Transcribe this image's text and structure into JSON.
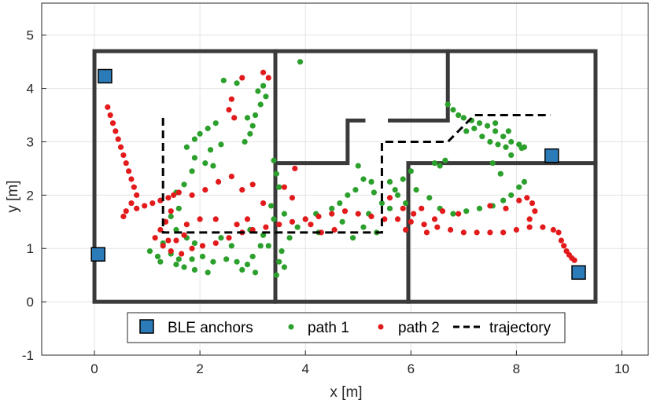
{
  "chart_data": {
    "type": "scatter",
    "title": "",
    "xlabel": "x [m]",
    "ylabel": "y [m]",
    "xlim": [
      -1,
      10.5
    ],
    "ylim": [
      -1,
      5.6
    ],
    "xticks": [
      0,
      2,
      4,
      6,
      8,
      10
    ],
    "yticks": [
      -1,
      0,
      1,
      2,
      3,
      4,
      5
    ],
    "grid": true,
    "legend_position": "bottom-center",
    "colors": {
      "walls": "#3a3a3a",
      "anchor_fill": "#2b7bb9",
      "path1": "#2ca02c",
      "path2": "#e31a1c",
      "trajectory": "#000000",
      "grid": "#e3e3e3"
    },
    "walls": [
      [
        [
          0,
          0
        ],
        [
          9.5,
          0
        ],
        [
          9.5,
          4.7
        ],
        [
          0,
          4.7
        ],
        [
          0,
          0
        ]
      ],
      [
        [
          3.43,
          0
        ],
        [
          3.43,
          4.7
        ]
      ],
      [
        [
          3.43,
          2.6
        ],
        [
          4.8,
          2.6
        ],
        [
          4.8,
          3.4
        ],
        [
          5.1,
          3.4
        ]
      ],
      [
        [
          5.6,
          3.4
        ],
        [
          6.7,
          3.4
        ],
        [
          6.7,
          4.7
        ]
      ],
      [
        [
          5.95,
          0
        ],
        [
          5.95,
          2.6
        ],
        [
          9.5,
          2.6
        ]
      ]
    ],
    "series": [
      {
        "name": "BLE anchors",
        "marker": "square",
        "points": [
          [
            0.2,
            4.23
          ],
          [
            0.07,
            0.89
          ],
          [
            8.67,
            2.74
          ],
          [
            9.18,
            0.55
          ]
        ]
      },
      {
        "name": "path 1",
        "marker": "dot",
        "points": [
          [
            3.9,
            4.5
          ],
          [
            2.45,
            4.15
          ],
          [
            2.7,
            4.1
          ],
          [
            3.2,
            4.05
          ],
          [
            3.1,
            3.95
          ],
          [
            3.25,
            3.85
          ],
          [
            3.15,
            3.7
          ],
          [
            3.05,
            3.5
          ],
          [
            2.9,
            3.45
          ],
          [
            3.0,
            3.3
          ],
          [
            2.95,
            3.15
          ],
          [
            2.85,
            3.0
          ],
          [
            2.3,
            3.35
          ],
          [
            2.15,
            3.25
          ],
          [
            2.0,
            3.15
          ],
          [
            1.9,
            3.05
          ],
          [
            2.4,
            2.95
          ],
          [
            2.2,
            2.85
          ],
          [
            1.75,
            2.9
          ],
          [
            1.9,
            2.7
          ],
          [
            2.1,
            2.6
          ],
          [
            2.25,
            2.55
          ],
          [
            1.85,
            2.45
          ],
          [
            1.7,
            2.2
          ],
          [
            1.55,
            2.05
          ],
          [
            1.6,
            1.75
          ],
          [
            1.45,
            1.6
          ],
          [
            1.35,
            1.5
          ],
          [
            1.55,
            1.35
          ],
          [
            1.75,
            1.2
          ],
          [
            1.9,
            1.1
          ],
          [
            1.3,
            1.1
          ],
          [
            1.05,
            0.95
          ],
          [
            1.2,
            0.85
          ],
          [
            1.45,
            0.9
          ],
          [
            1.6,
            0.8
          ],
          [
            1.85,
            0.8
          ],
          [
            2.05,
            0.85
          ],
          [
            2.25,
            0.75
          ],
          [
            2.5,
            0.8
          ],
          [
            2.7,
            0.75
          ],
          [
            2.9,
            0.7
          ],
          [
            3.0,
            0.85
          ],
          [
            3.15,
            1.05
          ],
          [
            3.2,
            1.25
          ],
          [
            2.95,
            1.35
          ],
          [
            2.6,
            1.05
          ],
          [
            2.4,
            1.2
          ],
          [
            2.8,
            0.6
          ],
          [
            3.05,
            0.55
          ],
          [
            2.15,
            0.55
          ],
          [
            1.9,
            0.6
          ],
          [
            1.7,
            0.65
          ],
          [
            1.55,
            0.7
          ],
          [
            1.25,
            0.75
          ],
          [
            3.45,
            0.5
          ],
          [
            3.5,
            0.75
          ],
          [
            3.55,
            0.95
          ],
          [
            3.7,
            1.2
          ],
          [
            3.85,
            1.4
          ],
          [
            3.4,
            1.55
          ],
          [
            3.35,
            1.8
          ],
          [
            3.5,
            2.15
          ],
          [
            3.45,
            2.4
          ],
          [
            3.4,
            2.65
          ],
          [
            3.6,
            1.65
          ],
          [
            3.3,
            1.05
          ],
          [
            3.6,
            0.65
          ],
          [
            4.0,
            1.55
          ],
          [
            4.2,
            1.65
          ],
          [
            4.5,
            1.75
          ],
          [
            4.65,
            1.85
          ],
          [
            4.8,
            2.0
          ],
          [
            4.95,
            2.1
          ],
          [
            5.1,
            2.3
          ],
          [
            5.0,
            2.55
          ],
          [
            5.25,
            2.25
          ],
          [
            5.3,
            2.05
          ],
          [
            5.45,
            1.85
          ],
          [
            5.6,
            1.75
          ],
          [
            5.7,
            2.1
          ],
          [
            5.85,
            2.3
          ],
          [
            6.0,
            2.45
          ],
          [
            5.9,
            1.85
          ],
          [
            5.2,
            1.65
          ],
          [
            5.1,
            1.4
          ],
          [
            5.35,
            1.3
          ],
          [
            4.9,
            1.2
          ],
          [
            4.7,
            1.5
          ],
          [
            4.25,
            1.3
          ],
          [
            5.6,
            2.25
          ],
          [
            5.75,
            2.0
          ],
          [
            6.1,
            2.1
          ],
          [
            6.35,
            1.95
          ],
          [
            6.55,
            1.75
          ],
          [
            6.8,
            1.65
          ],
          [
            7.05,
            1.7
          ],
          [
            7.3,
            1.75
          ],
          [
            7.55,
            1.8
          ],
          [
            7.75,
            1.9
          ],
          [
            7.9,
            2.0
          ],
          [
            8.05,
            2.15
          ],
          [
            8.15,
            2.25
          ],
          [
            7.7,
            2.4
          ],
          [
            7.55,
            2.6
          ],
          [
            6.65,
            2.65
          ],
          [
            6.55,
            2.55
          ],
          [
            6.45,
            2.6
          ],
          [
            6.7,
            3.7
          ],
          [
            6.8,
            3.6
          ],
          [
            6.9,
            3.5
          ],
          [
            7.0,
            3.45
          ],
          [
            7.15,
            3.4
          ],
          [
            7.3,
            3.35
          ],
          [
            7.45,
            3.3
          ],
          [
            7.6,
            3.2
          ],
          [
            7.75,
            3.1
          ],
          [
            7.9,
            3.0
          ],
          [
            8.05,
            2.95
          ],
          [
            8.15,
            2.9
          ],
          [
            7.35,
            3.1
          ],
          [
            7.5,
            3.0
          ],
          [
            7.65,
            2.95
          ],
          [
            7.8,
            2.9
          ],
          [
            7.2,
            3.25
          ],
          [
            7.05,
            3.2
          ],
          [
            7.6,
            3.35
          ],
          [
            7.85,
            3.2
          ],
          [
            8.1,
            2.88
          ],
          [
            7.9,
            2.75
          ]
        ]
      },
      {
        "name": "path 2",
        "marker": "dot",
        "points": [
          [
            0.25,
            3.65
          ],
          [
            0.3,
            3.5
          ],
          [
            0.35,
            3.35
          ],
          [
            0.4,
            3.2
          ],
          [
            0.45,
            3.05
          ],
          [
            0.5,
            2.9
          ],
          [
            0.55,
            2.75
          ],
          [
            0.6,
            2.6
          ],
          [
            0.65,
            2.45
          ],
          [
            0.7,
            2.3
          ],
          [
            0.75,
            2.15
          ],
          [
            0.8,
            2.0
          ],
          [
            0.7,
            1.85
          ],
          [
            0.6,
            1.7
          ],
          [
            0.55,
            1.6
          ],
          [
            0.8,
            1.75
          ],
          [
            0.95,
            1.8
          ],
          [
            1.1,
            1.85
          ],
          [
            1.25,
            1.9
          ],
          [
            1.4,
            1.95
          ],
          [
            1.5,
            2.0
          ],
          [
            1.6,
            2.05
          ],
          [
            1.45,
            1.7
          ],
          [
            1.35,
            1.5
          ],
          [
            1.25,
            1.35
          ],
          [
            1.15,
            1.2
          ],
          [
            1.3,
            1.05
          ],
          [
            1.45,
            0.95
          ],
          [
            1.65,
            0.9
          ],
          [
            1.85,
            1.0
          ],
          [
            2.05,
            1.05
          ],
          [
            2.3,
            1.1
          ],
          [
            2.55,
            1.2
          ],
          [
            2.8,
            1.3
          ],
          [
            3.0,
            1.35
          ],
          [
            3.25,
            1.4
          ],
          [
            3.5,
            1.45
          ],
          [
            3.75,
            1.5
          ],
          [
            4.0,
            1.55
          ],
          [
            4.25,
            1.6
          ],
          [
            4.5,
            1.65
          ],
          [
            4.75,
            1.7
          ],
          [
            5.0,
            1.65
          ],
          [
            5.25,
            1.6
          ],
          [
            5.5,
            1.55
          ],
          [
            5.75,
            1.55
          ],
          [
            6.0,
            1.5
          ],
          [
            6.25,
            1.45
          ],
          [
            6.5,
            1.4
          ],
          [
            6.75,
            1.35
          ],
          [
            7.0,
            1.3
          ],
          [
            7.25,
            1.3
          ],
          [
            7.5,
            1.3
          ],
          [
            7.75,
            1.3
          ],
          [
            8.0,
            1.35
          ],
          [
            8.25,
            1.4
          ],
          [
            8.5,
            1.4
          ],
          [
            8.7,
            1.35
          ],
          [
            8.8,
            1.3
          ],
          [
            8.85,
            1.15
          ],
          [
            8.9,
            1.05
          ],
          [
            8.95,
            0.95
          ],
          [
            9.0,
            0.88
          ],
          [
            9.05,
            0.82
          ],
          [
            9.1,
            0.78
          ],
          [
            8.05,
            1.9
          ],
          [
            8.2,
            1.95
          ],
          [
            8.3,
            1.85
          ],
          [
            8.35,
            1.7
          ],
          [
            8.25,
            1.55
          ],
          [
            7.8,
            1.75
          ],
          [
            7.5,
            1.8
          ],
          [
            6.9,
            1.65
          ],
          [
            6.6,
            1.7
          ],
          [
            6.2,
            1.75
          ],
          [
            5.85,
            1.75
          ],
          [
            6.05,
            1.65
          ],
          [
            5.6,
            1.95
          ],
          [
            2.8,
            4.2
          ],
          [
            3.2,
            4.3
          ],
          [
            3.3,
            4.2
          ],
          [
            2.6,
            3.8
          ],
          [
            2.55,
            3.6
          ],
          [
            2.65,
            3.45
          ],
          [
            2.6,
            2.35
          ],
          [
            2.35,
            2.25
          ],
          [
            2.1,
            2.1
          ],
          [
            1.85,
            2.0
          ],
          [
            2.8,
            2.1
          ],
          [
            3.0,
            2.2
          ],
          [
            2.0,
            1.55
          ],
          [
            2.3,
            1.55
          ],
          [
            1.75,
            1.45
          ],
          [
            1.7,
            1.25
          ],
          [
            1.55,
            1.15
          ],
          [
            1.4,
            1.15
          ],
          [
            3.8,
            2.5
          ],
          [
            3.6,
            2.15
          ],
          [
            3.75,
            1.95
          ],
          [
            3.2,
            1.85
          ],
          [
            2.9,
            1.55
          ],
          [
            2.7,
            1.45
          ],
          [
            4.1,
            1.45
          ],
          [
            4.3,
            1.3
          ],
          [
            4.55,
            1.35
          ],
          [
            5.9,
            1.35
          ],
          [
            6.3,
            1.3
          ],
          [
            6.45,
            1.55
          ]
        ]
      },
      {
        "name": "trajectory",
        "marker": "dashed-line",
        "points": [
          [
            1.3,
            3.45
          ],
          [
            1.3,
            1.3
          ],
          [
            5.45,
            1.3
          ],
          [
            5.45,
            3.0
          ],
          [
            6.7,
            3.0
          ],
          [
            7.2,
            3.5
          ],
          [
            8.65,
            3.5
          ]
        ]
      }
    ]
  }
}
